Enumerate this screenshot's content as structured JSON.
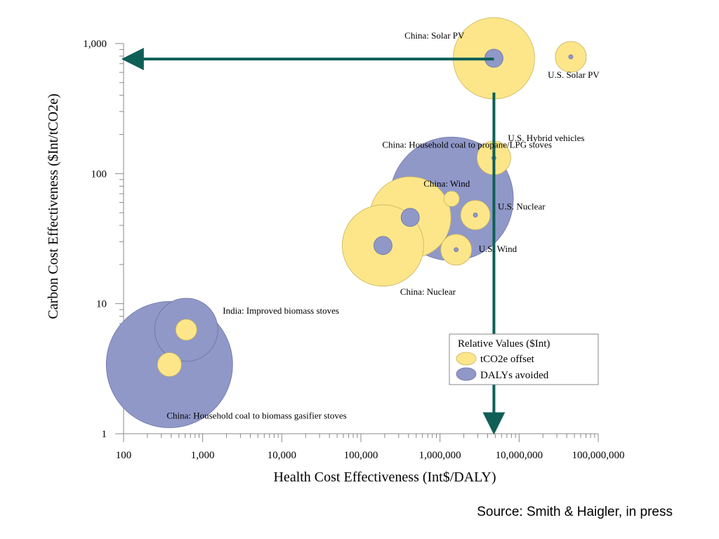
{
  "chart_data": {
    "type": "scatter",
    "title": "",
    "xlabel": "Health Cost Effectiveness (Int$/DALY)",
    "ylabel": "Carbon Cost Effectiveness ($Int/tCO2e)",
    "x_scale": "log",
    "y_scale": "log",
    "xlim": [
      100,
      100000000
    ],
    "ylim": [
      1,
      1000
    ],
    "x_ticks": [
      "100",
      "1,000",
      "10,000",
      "100,000",
      "1,000,000",
      "10,000,000",
      "100,000,000"
    ],
    "y_ticks": [
      "1",
      "10",
      "100",
      "1,000"
    ],
    "grid": false,
    "legend": {
      "title": "Relative Values ($Int)",
      "position": "lower-right",
      "items": [
        {
          "label": "tCO2e offset",
          "color": "#fde68a"
        },
        {
          "label": "DALYs avoided",
          "color": "#9098c8"
        }
      ]
    },
    "points": [
      {
        "label": "China: Solar PV",
        "x": 4800000,
        "y": 770,
        "co2_r": 58,
        "daly_r": 13
      },
      {
        "label": "U.S. Solar PV",
        "x": 45000000,
        "y": 790,
        "co2_r": 22,
        "daly_r": 3
      },
      {
        "label": "U.S. Hybrid vehicles",
        "x": 4800000,
        "y": 132,
        "co2_r": 24,
        "daly_r": 3
      },
      {
        "label": "China: Household coal to propane/LPG stoves",
        "x": 1400000,
        "y": 64,
        "co2_r": 11,
        "daly_r": 88
      },
      {
        "label": "China: Wind",
        "x": 420000,
        "y": 46,
        "co2_r": 58,
        "daly_r": 13
      },
      {
        "label": "U.S. Nuclear",
        "x": 2800000,
        "y": 48,
        "co2_r": 21,
        "daly_r": 3
      },
      {
        "label": "China: Nuclear",
        "x": 190000,
        "y": 28,
        "co2_r": 58,
        "daly_r": 13
      },
      {
        "label": "U.S. Wind",
        "x": 1600000,
        "y": 26,
        "co2_r": 22,
        "daly_r": 3
      },
      {
        "label": "India: Improved biomass stoves",
        "x": 620,
        "y": 6.3,
        "co2_r": 15,
        "daly_r": 45
      },
      {
        "label": "China: Household coal to biomass gasifier stoves",
        "x": 380,
        "y": 3.4,
        "co2_r": 17,
        "daly_r": 90
      }
    ],
    "arrows": [
      {
        "from": [
          4800000,
          760
        ],
        "to": [
          130,
          760
        ],
        "color": "#0f5f57"
      },
      {
        "from": [
          4800000,
          420
        ],
        "to": [
          4800000,
          1.2
        ],
        "color": "#0f5f57"
      }
    ]
  },
  "source": "Source: Smith & Haigler, in press"
}
